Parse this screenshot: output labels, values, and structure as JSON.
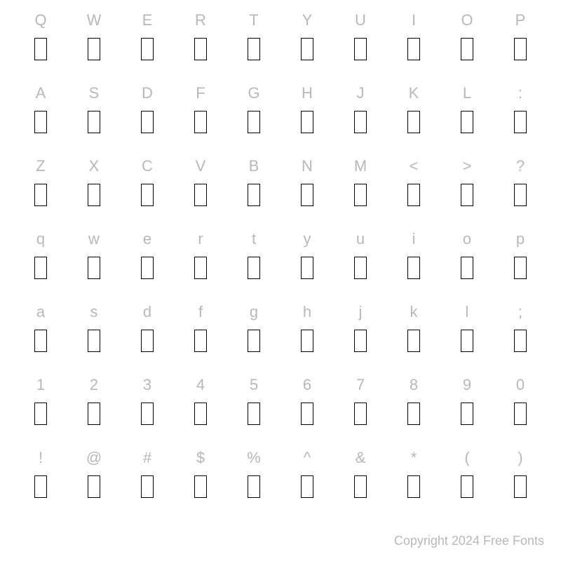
{
  "rows": [
    [
      "Q",
      "W",
      "E",
      "R",
      "T",
      "Y",
      "U",
      "I",
      "O",
      "P"
    ],
    [
      "A",
      "S",
      "D",
      "F",
      "G",
      "H",
      "J",
      "K",
      "L",
      ":"
    ],
    [
      "Z",
      "X",
      "C",
      "V",
      "B",
      "N",
      "M",
      "<",
      ">",
      "?"
    ],
    [
      "q",
      "w",
      "e",
      "r",
      "t",
      "y",
      "u",
      "i",
      "o",
      "p"
    ],
    [
      "a",
      "s",
      "d",
      "f",
      "g",
      "h",
      "j",
      "k",
      "l",
      ";"
    ],
    [
      "1",
      "2",
      "3",
      "4",
      "5",
      "6",
      "7",
      "8",
      "9",
      "0"
    ],
    [
      "!",
      "@",
      "#",
      "$",
      "%",
      "^",
      "&",
      "*",
      "(",
      ")"
    ]
  ],
  "copyright": "Copyright 2024 Free Fonts",
  "colors": {
    "label_color": "#b8b8b8",
    "box_border": "#000000",
    "background": "#ffffff"
  },
  "font": {
    "label_size": 22,
    "copyright_size": 18
  },
  "glyph_box": {
    "width": 18,
    "height": 32,
    "border_width": 1.5
  }
}
